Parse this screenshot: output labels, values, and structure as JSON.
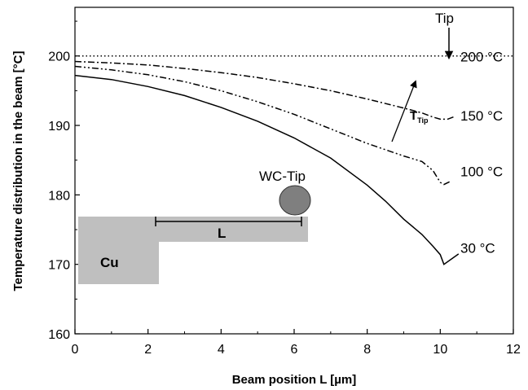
{
  "chart_data": {
    "type": "line",
    "title": "",
    "xlabel": "Beam position L [µm]",
    "ylabel": "Temperature distribution in the beam [°C]",
    "xlim": [
      0,
      12
    ],
    "ylim": [
      160,
      207
    ],
    "xticks": [
      0,
      2,
      4,
      6,
      8,
      10,
      12
    ],
    "yticks": [
      160,
      170,
      180,
      190,
      200
    ],
    "grid": false,
    "series": [
      {
        "name": "200 °C",
        "style": "dotted",
        "x": [
          0,
          12
        ],
        "y": [
          200,
          200
        ]
      },
      {
        "name": "150 °C",
        "style": "dash-dot",
        "x": [
          0,
          1,
          2,
          3,
          4,
          5,
          6,
          7,
          8,
          9,
          9.5,
          9.8,
          10,
          10.2,
          10.4
        ],
        "y": [
          199.2,
          199.0,
          198.7,
          198.2,
          197.6,
          196.9,
          196.0,
          195.0,
          193.8,
          192.5,
          191.8,
          191.2,
          190.9,
          190.9,
          191.3
        ]
      },
      {
        "name": "100 °C",
        "style": "dash-dot-dot",
        "x": [
          0,
          1,
          2,
          3,
          4,
          5,
          6,
          7,
          8,
          8.5,
          9,
          9.5,
          9.8,
          10,
          10.1,
          10.3
        ],
        "y": [
          198.5,
          198.0,
          197.3,
          196.3,
          195.0,
          193.4,
          191.6,
          189.5,
          187.4,
          186.5,
          185.6,
          184.8,
          183.5,
          181.8,
          181.5,
          182.0
        ]
      },
      {
        "name": "30 °C",
        "style": "solid",
        "x": [
          0,
          1,
          2,
          3,
          4,
          5,
          6,
          7,
          8,
          8.5,
          9,
          9.5,
          9.8,
          10,
          10.1,
          10.5
        ],
        "y": [
          197.2,
          196.6,
          195.6,
          194.3,
          192.6,
          190.6,
          188.2,
          185.3,
          181.4,
          179.1,
          176.5,
          174.3,
          172.6,
          171.4,
          170.0,
          171.5
        ]
      }
    ],
    "annotations": {
      "tip_label": "Tip",
      "temp_label_main": "T",
      "temp_label_sub": "Tip",
      "wc_tip_label": "WC-Tip",
      "cu_label": "Cu",
      "length_label": "L"
    },
    "colors": {
      "line": "#000000",
      "substrate": "#bfbfbf",
      "tip": "#7f7f7f"
    }
  }
}
